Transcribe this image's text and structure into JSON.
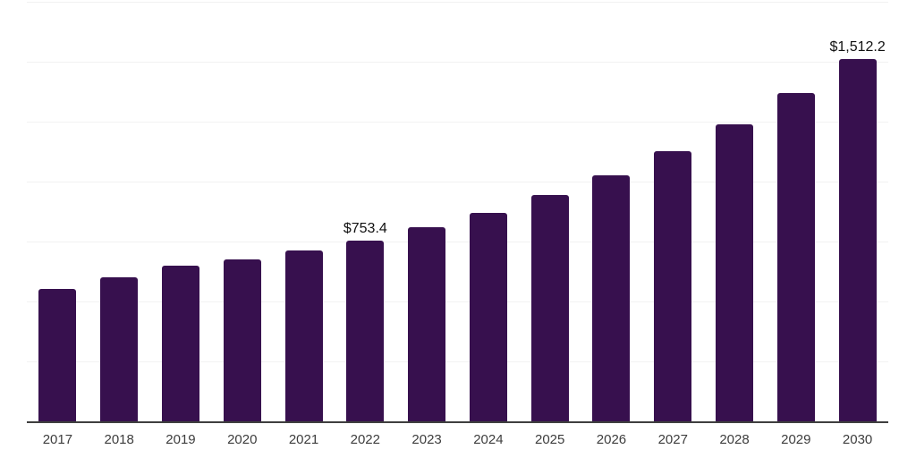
{
  "chart_data": {
    "type": "bar",
    "title": "",
    "xlabel": "",
    "ylabel": "",
    "categories": [
      "2017",
      "2018",
      "2019",
      "2020",
      "2021",
      "2022",
      "2023",
      "2024",
      "2025",
      "2026",
      "2027",
      "2028",
      "2029",
      "2030"
    ],
    "values": [
      554,
      599,
      651,
      677,
      711,
      753.4,
      811,
      871,
      945,
      1027,
      1127,
      1239,
      1369,
      1512.2
    ],
    "data_labels": [
      null,
      null,
      null,
      null,
      null,
      "$753.4",
      null,
      null,
      null,
      null,
      null,
      null,
      null,
      "$1,512.2"
    ],
    "ylim": [
      0,
      1750
    ],
    "gridline_step": 250,
    "grid": "horizontal-only",
    "legend": "none",
    "y_axis_tick_labels": "none",
    "colors": {
      "bar": "#37104e",
      "gridline": "#f2f2f2",
      "axis_line": "#3f3f3f",
      "tick_label": "#3d3d3d",
      "data_label": "#111111",
      "background": "#ffffff"
    }
  }
}
